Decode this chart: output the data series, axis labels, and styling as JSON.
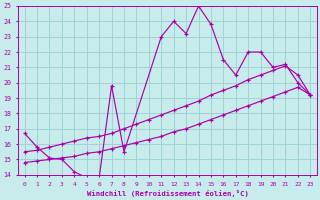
{
  "xlabel": "Windchill (Refroidissement éolien,°C)",
  "xlim": [
    -0.5,
    23.5
  ],
  "ylim": [
    14,
    25
  ],
  "yticks": [
    14,
    15,
    16,
    17,
    18,
    19,
    20,
    21,
    22,
    23,
    24,
    25
  ],
  "xticks": [
    0,
    1,
    2,
    3,
    4,
    5,
    6,
    7,
    8,
    9,
    10,
    11,
    12,
    13,
    14,
    15,
    16,
    17,
    18,
    19,
    20,
    21,
    22,
    23
  ],
  "bg_color": "#c8ecec",
  "line_color": "#aa00aa",
  "grid_color": "#9fd4d4",
  "lines": [
    {
      "x": [
        0,
        1,
        2,
        3,
        4,
        5,
        6,
        7,
        8,
        11,
        12,
        13,
        14,
        15,
        16,
        17,
        18,
        19,
        20,
        21,
        22,
        23
      ],
      "y": [
        16.7,
        15.8,
        15.1,
        15.0,
        14.2,
        13.8,
        13.8,
        19.8,
        15.5,
        23.0,
        24.0,
        23.2,
        25.0,
        23.8,
        21.5,
        20.5,
        22.0,
        22.0,
        21.0,
        21.2,
        20.0,
        19.2
      ]
    },
    {
      "x": [
        0,
        1,
        2,
        3,
        4,
        5,
        6,
        7,
        8,
        9,
        10,
        11,
        12,
        13,
        14,
        15,
        16,
        17,
        18,
        19,
        20,
        21,
        22,
        23
      ],
      "y": [
        14.8,
        14.9,
        15.0,
        15.1,
        15.2,
        15.4,
        15.5,
        15.7,
        15.9,
        16.1,
        16.3,
        16.5,
        16.8,
        17.0,
        17.3,
        17.6,
        17.9,
        18.2,
        18.5,
        18.8,
        19.1,
        19.4,
        19.7,
        19.2
      ]
    },
    {
      "x": [
        0,
        1,
        2,
        3,
        4,
        5,
        6,
        7,
        8,
        9,
        10,
        11,
        12,
        13,
        14,
        15,
        16,
        17,
        18,
        19,
        20,
        21,
        22,
        23
      ],
      "y": [
        15.5,
        15.6,
        15.8,
        16.0,
        16.2,
        16.4,
        16.5,
        16.7,
        17.0,
        17.3,
        17.6,
        17.9,
        18.2,
        18.5,
        18.8,
        19.2,
        19.5,
        19.8,
        20.2,
        20.5,
        20.8,
        21.1,
        20.5,
        19.2
      ]
    }
  ]
}
